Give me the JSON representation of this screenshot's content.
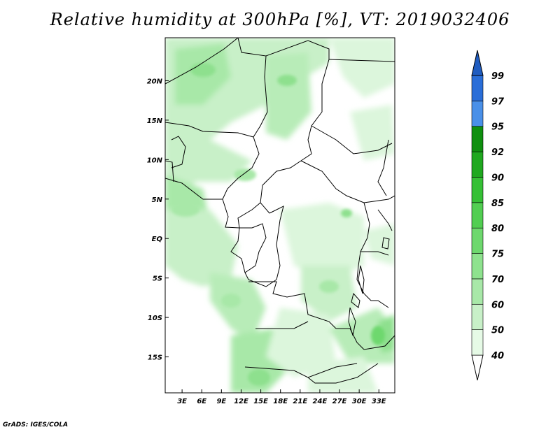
{
  "title": "Relative humidity at 300hPa [%], VT: 2019032406",
  "credit": "GrADS: IGES/COLA",
  "map": {
    "lat_labels": [
      "20N",
      "15N",
      "10N",
      "5N",
      "EQ",
      "5S",
      "10S",
      "15S"
    ],
    "lat_values": [
      20,
      15,
      10,
      5,
      0,
      -5,
      -10,
      -15
    ],
    "lon_labels": [
      "3E",
      "6E",
      "9E",
      "12E",
      "15E",
      "18E",
      "21E",
      "24E",
      "27E",
      "30E",
      "33E"
    ],
    "lon_values": [
      3,
      6,
      9,
      12,
      15,
      18,
      21,
      24,
      27,
      30,
      33
    ],
    "lat_range": [
      -20,
      25
    ],
    "lon_range": [
      0,
      35
    ]
  },
  "colorbar": {
    "levels": [
      "40",
      "50",
      "60",
      "70",
      "75",
      "80",
      "85",
      "90",
      "92",
      "95",
      "97",
      "99"
    ],
    "colors": [
      "#ffffff",
      "#e6fae6",
      "#c8f0c8",
      "#a8e8a8",
      "#8ee28e",
      "#6ed86e",
      "#52ce52",
      "#36c036",
      "#20a820",
      "#0f900f",
      "#4a90e8",
      "#2a6ed8",
      "#1f5cc0"
    ]
  },
  "colors": {
    "land_border": "#000000",
    "field_light": "#dcf6dc",
    "field_mid": "#b8ecb8",
    "field_strong": "#8ee08e"
  }
}
